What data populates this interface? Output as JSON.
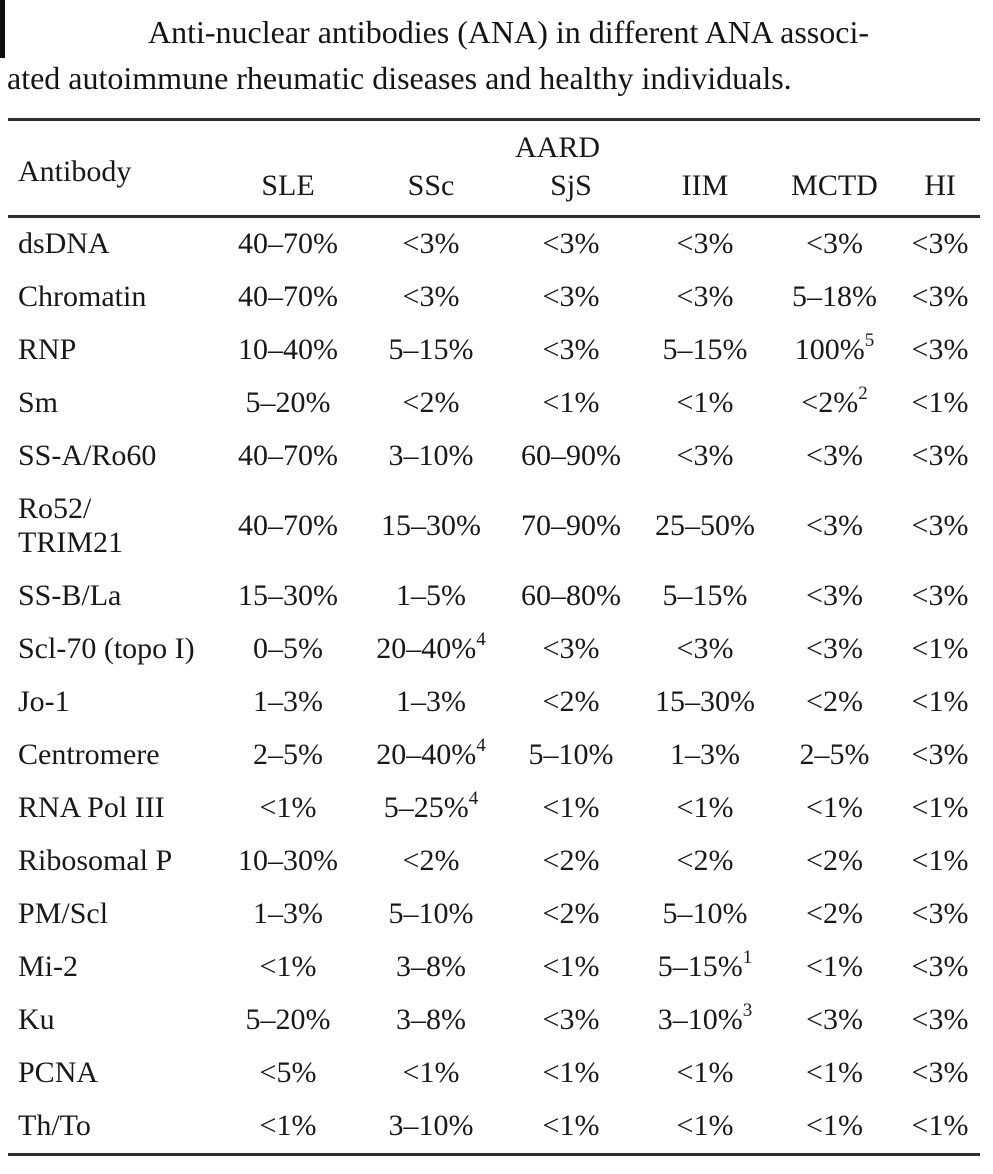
{
  "caption": {
    "line1": "Anti-nuclear antibodies (ANA) in different ANA associ-",
    "line2": "ated autoimmune rheumatic diseases and healthy individuals."
  },
  "table": {
    "row_header": "Antibody",
    "group_header": "AARD",
    "columns": [
      "SLE",
      "SSc",
      "SjS",
      "IIM",
      "MCTD",
      "HI"
    ],
    "rows": [
      {
        "antibody": "dsDNA",
        "values": [
          "40–70%",
          "<3%",
          "<3%",
          "<3%",
          "<3%",
          "<3%"
        ]
      },
      {
        "antibody": "Chromatin",
        "values": [
          "40–70%",
          "<3%",
          "<3%",
          "<3%",
          "5–18%",
          "<3%"
        ]
      },
      {
        "antibody": "RNP",
        "values": [
          "10–40%",
          "5–15%",
          "<3%",
          "5–15%",
          "100%^5",
          "<3%"
        ]
      },
      {
        "antibody": "Sm",
        "values": [
          "5–20%",
          "<2%",
          "<1%",
          "<1%",
          "<2%^2",
          "<1%"
        ]
      },
      {
        "antibody": "SS-A/Ro60",
        "values": [
          "40–70%",
          "3–10%",
          "60–90%",
          "<3%",
          "<3%",
          "<3%"
        ]
      },
      {
        "antibody": "Ro52/\nTRIM21",
        "values": [
          "40–70%",
          "15–30%",
          "70–90%",
          "25–50%",
          "<3%",
          "<3%"
        ]
      },
      {
        "antibody": "SS-B/La",
        "values": [
          "15–30%",
          "1–5%",
          "60–80%",
          "5–15%",
          "<3%",
          "<3%"
        ]
      },
      {
        "antibody": "Scl-70 (topo I)",
        "values": [
          "0–5%",
          "20–40%^4",
          "<3%",
          "<3%",
          "<3%",
          "<1%"
        ]
      },
      {
        "antibody": "Jo-1",
        "values": [
          "1–3%",
          "1–3%",
          "<2%",
          "15–30%",
          "<2%",
          "<1%"
        ]
      },
      {
        "antibody": "Centromere",
        "values": [
          "2–5%",
          "20–40%^4",
          "5–10%",
          "1–3%",
          "2–5%",
          "<3%"
        ]
      },
      {
        "antibody": "RNA Pol III",
        "values": [
          "<1%",
          "5–25%^4",
          "<1%",
          "<1%",
          "<1%",
          "<1%"
        ]
      },
      {
        "antibody": "Ribosomal P",
        "values": [
          "10–30%",
          "<2%",
          "<2%",
          "<2%",
          "<2%",
          "<1%"
        ]
      },
      {
        "antibody": "PM/Scl",
        "values": [
          "1–3%",
          "5–10%",
          "<2%",
          "5–10%",
          "<2%",
          "<3%"
        ]
      },
      {
        "antibody": "Mi-2",
        "values": [
          "<1%",
          "3–8%",
          "<1%",
          "5–15%^1",
          "<1%",
          "<3%"
        ]
      },
      {
        "antibody": "Ku",
        "values": [
          "5–20%",
          "3–8%",
          "<3%",
          "3–10%^3",
          "<3%",
          "<3%"
        ]
      },
      {
        "antibody": "PCNA",
        "values": [
          "<5%",
          "<1%",
          "<1%",
          "<1%",
          "<1%",
          "<3%"
        ]
      },
      {
        "antibody": "Th/To",
        "values": [
          "<1%",
          "3–10%",
          "<1%",
          "<1%",
          "<1%",
          "<1%"
        ]
      }
    ]
  },
  "colors": {
    "text": "#181818",
    "rule": "#2e2e2e",
    "background": "#ffffff",
    "edge_artifact": "#0d0d0d"
  }
}
